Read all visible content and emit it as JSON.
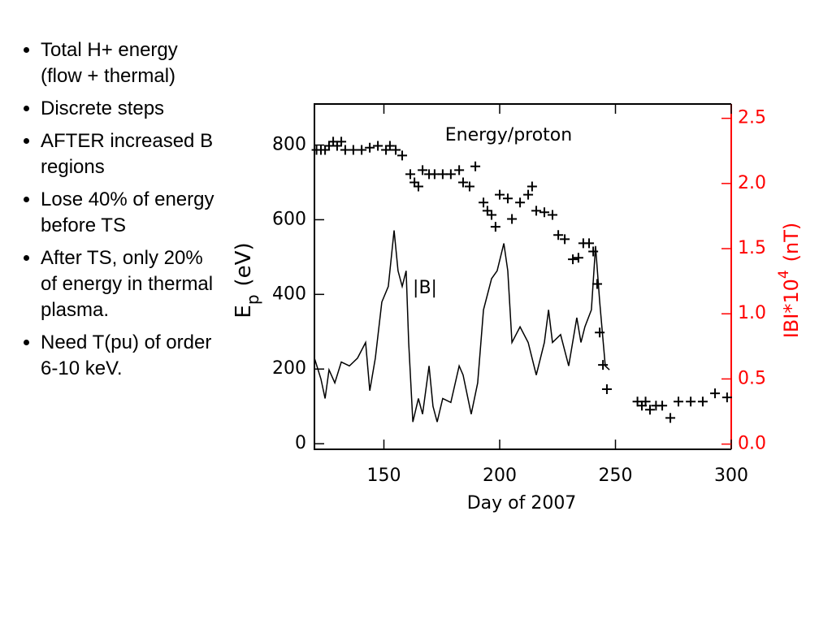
{
  "bullets": [
    "Total H+ energy (flow + thermal)",
    "Discrete steps",
    "AFTER increased B regions",
    "Lose 40% of energy before TS",
    "After TS, only 20% of energy in thermal plasma.",
    "Need T(pu) of order 6-10 keV."
  ],
  "chart_data": {
    "type": "scatter",
    "xlabel": "Day of 2007",
    "ylabel": {
      "main": "E",
      "sub": "p",
      "unit": "(eV)"
    },
    "y2label": {
      "main": "IBI*10",
      "sup": "4",
      "unit": "(nT)"
    },
    "annotations": [
      "Energy/proton",
      "|B|"
    ],
    "xlim": [
      120,
      300
    ],
    "xticks": [
      150,
      200,
      250,
      300
    ],
    "ylim": [
      -15,
      910
    ],
    "yticks": [
      0,
      200,
      400,
      600,
      800
    ],
    "y2lim": [
      -0.04,
      2.61
    ],
    "y2ticks": [
      {
        "value": 0,
        "label": "0.0"
      },
      {
        "value": 0.5,
        "label": "0.5"
      },
      {
        "value": 1,
        "label": "1.0"
      },
      {
        "value": 1.5,
        "label": "1.5"
      },
      {
        "value": 2,
        "label": "2.0"
      },
      {
        "value": 2.5,
        "label": "2.5"
      }
    ],
    "series": [
      {
        "style": "plus",
        "color": "#000000",
        "axis": "y",
        "x": [
          120.9,
          122.8,
          124.6,
          126.3,
          128.1,
          129.8,
          131.6,
          133.3,
          136.8,
          140.4,
          143.9,
          147.4,
          150.9,
          152.6,
          155.1,
          157.9,
          161.4,
          163.2,
          164.9,
          166.7,
          169.5,
          171.9,
          175.4,
          178.9,
          182.5,
          184.2,
          187.0,
          189.5,
          193.0,
          194.7,
          196.5,
          198.2,
          200.0,
          203.5,
          205.3,
          208.8,
          212.3,
          214.0,
          215.8,
          219.3,
          222.8,
          225.3,
          228.1,
          231.6,
          234.0,
          236.1,
          238.6,
          240.4,
          242.1,
          243.2,
          244.6,
          246.3,
          259.5,
          261.4,
          263.0,
          264.9,
          267.5,
          270.2,
          273.7,
          277.2,
          282.5,
          287.7,
          293.0,
          298.2
        ],
        "values": [
          787,
          787,
          787,
          798,
          809,
          798,
          809,
          787,
          787,
          787,
          793,
          798,
          787,
          798,
          787,
          772,
          722,
          700,
          689,
          733,
          722,
          722,
          722,
          722,
          733,
          700,
          689,
          743,
          646,
          624,
          613,
          581,
          667,
          657,
          602,
          646,
          667,
          689,
          624,
          620,
          613,
          559,
          548,
          494,
          498,
          537,
          537,
          515,
          428,
          298,
          211,
          146,
          113,
          102,
          113,
          91,
          102,
          102,
          69,
          113,
          113,
          113,
          135,
          124
        ]
      },
      {
        "style": "line",
        "color": "#000000",
        "axis": "y2",
        "x": [
          120,
          122.8,
          124.6,
          126.3,
          128.8,
          131.6,
          135.1,
          138.6,
          142.1,
          143.9,
          146.3,
          149.1,
          151.9,
          154.4,
          156.1,
          157.9,
          159.6,
          160.7,
          162.5,
          164.9,
          166.7,
          169.5,
          171.2,
          173.0,
          175.4,
          178.9,
          182.5,
          184.2,
          187.7,
          190.5,
          193.0,
          196.5,
          198.9,
          201.8,
          203.5,
          205.3,
          208.8,
          212.3,
          215.8,
          219.3,
          221.1,
          222.8,
          226.3,
          229.8,
          233.3,
          235.1,
          236.8,
          239.6,
          241.4,
          243.2,
          245.6,
          247.4
        ],
        "values": [
          0.66,
          0.5,
          0.35,
          0.57,
          0.47,
          0.63,
          0.6,
          0.66,
          0.78,
          0.41,
          0.66,
          1.09,
          1.21,
          1.64,
          1.33,
          1.21,
          1.33,
          0.78,
          0.17,
          0.35,
          0.23,
          0.6,
          0.29,
          0.17,
          0.35,
          0.32,
          0.6,
          0.53,
          0.23,
          0.47,
          1.03,
          1.27,
          1.33,
          1.54,
          1.33,
          0.78,
          0.9,
          0.78,
          0.53,
          0.78,
          1.03,
          0.78,
          0.84,
          0.6,
          0.97,
          0.78,
          0.9,
          1.03,
          1.52,
          1.09,
          0.6,
          0.57
        ]
      }
    ],
    "y2color": "#ff0000"
  }
}
